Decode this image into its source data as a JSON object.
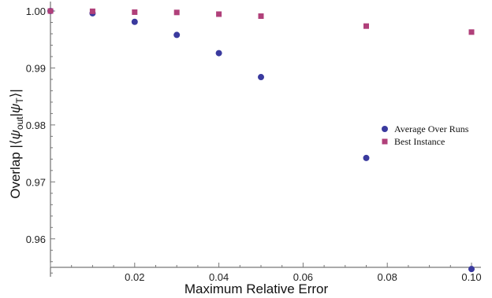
{
  "chart_data": {
    "type": "scatter",
    "xlabel": "Maximum Relative Error",
    "ylabel": "Overlap |⟨ψout|ψT⟩|",
    "ylabel_parts": {
      "prefix": "Overlap |⟨",
      "psi1": "ψ",
      "sub1": "out",
      "mid": "|",
      "psi2": "ψ",
      "sub2": "T",
      "suffix": "⟩|"
    },
    "xlim": [
      0,
      0.1
    ],
    "ylim": [
      0.955,
      1.0
    ],
    "xticks": [
      0.02,
      0.04,
      0.06,
      0.08,
      0.1
    ],
    "xtick_labels": [
      "0.02",
      "0.04",
      "0.06",
      "0.08",
      "0.10"
    ],
    "yticks": [
      0.96,
      0.97,
      0.98,
      0.99,
      1.0
    ],
    "ytick_labels": [
      "0.96",
      "0.97",
      "0.98",
      "0.99",
      "1.00"
    ],
    "grid": false,
    "legend_position": "right-middle",
    "series": [
      {
        "name": "Average Over Runs",
        "marker": "circle",
        "color": "#3a3a9e",
        "x": [
          0,
          0.01,
          0.02,
          0.03,
          0.04,
          0.05,
          0.075,
          0.1
        ],
        "y": [
          1.0,
          0.9996,
          0.9981,
          0.9958,
          0.9926,
          0.9884,
          0.9742,
          0.9547
        ]
      },
      {
        "name": "Best Instance",
        "marker": "square",
        "color": "#b0407a",
        "x": [
          0,
          0.01,
          0.02,
          0.03,
          0.04,
          0.05,
          0.075,
          0.1
        ],
        "y": [
          1.0,
          0.99995,
          0.9998,
          0.99975,
          0.99945,
          0.9991,
          0.99735,
          0.9963
        ]
      }
    ]
  }
}
